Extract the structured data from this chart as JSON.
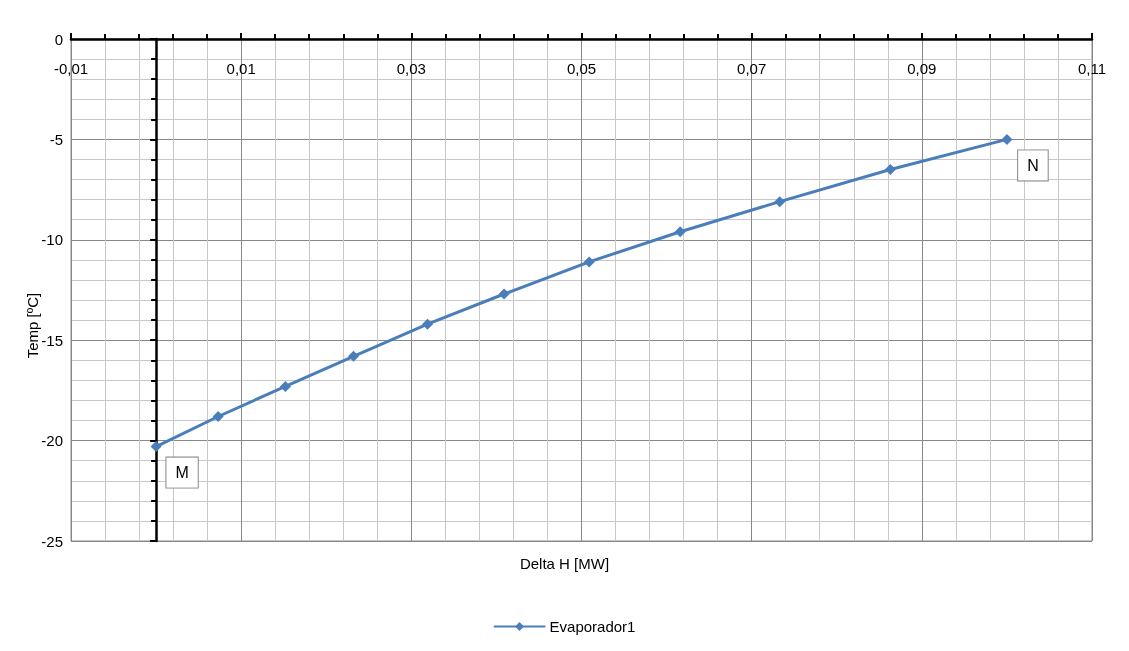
{
  "chart_data": {
    "type": "line",
    "xlabel": "Delta H [MW]",
    "ylabel": "Temp [ºC]",
    "x": [
      0,
      0.0073,
      0.0152,
      0.0232,
      0.0319,
      0.0409,
      0.0509,
      0.0616,
      0.0733,
      0.0863,
      0.1
    ],
    "series": [
      {
        "name": "Evaporador1",
        "color": "#4a7ebb",
        "values": [
          -20.3,
          -18.8,
          -17.3,
          -15.8,
          -14.2,
          -12.7,
          -11.1,
          -9.6,
          -8.1,
          -6.5,
          -5.0
        ]
      }
    ],
    "xlim": [
      -0.01,
      0.11
    ],
    "xticks": [
      {
        "value": -0.01,
        "label": "-0,01"
      },
      {
        "value": 0.01,
        "label": "0,01"
      },
      {
        "value": 0.03,
        "label": "0,03"
      },
      {
        "value": 0.05,
        "label": "0,05"
      },
      {
        "value": 0.07,
        "label": "0,07"
      },
      {
        "value": 0.09,
        "label": "0,09"
      },
      {
        "value": 0.11,
        "label": "0,11"
      }
    ],
    "ylim": [
      -25,
      0
    ],
    "yticks": [
      -25,
      -20,
      -15,
      -10,
      -5,
      0
    ],
    "annotations": [
      {
        "text": "M",
        "x": 0,
        "y": -20.3
      },
      {
        "text": "N",
        "x": 0.1,
        "y": -5.0
      }
    ],
    "grid": true,
    "legend": "bottom",
    "marker": "diamond",
    "line_style": "solid"
  }
}
